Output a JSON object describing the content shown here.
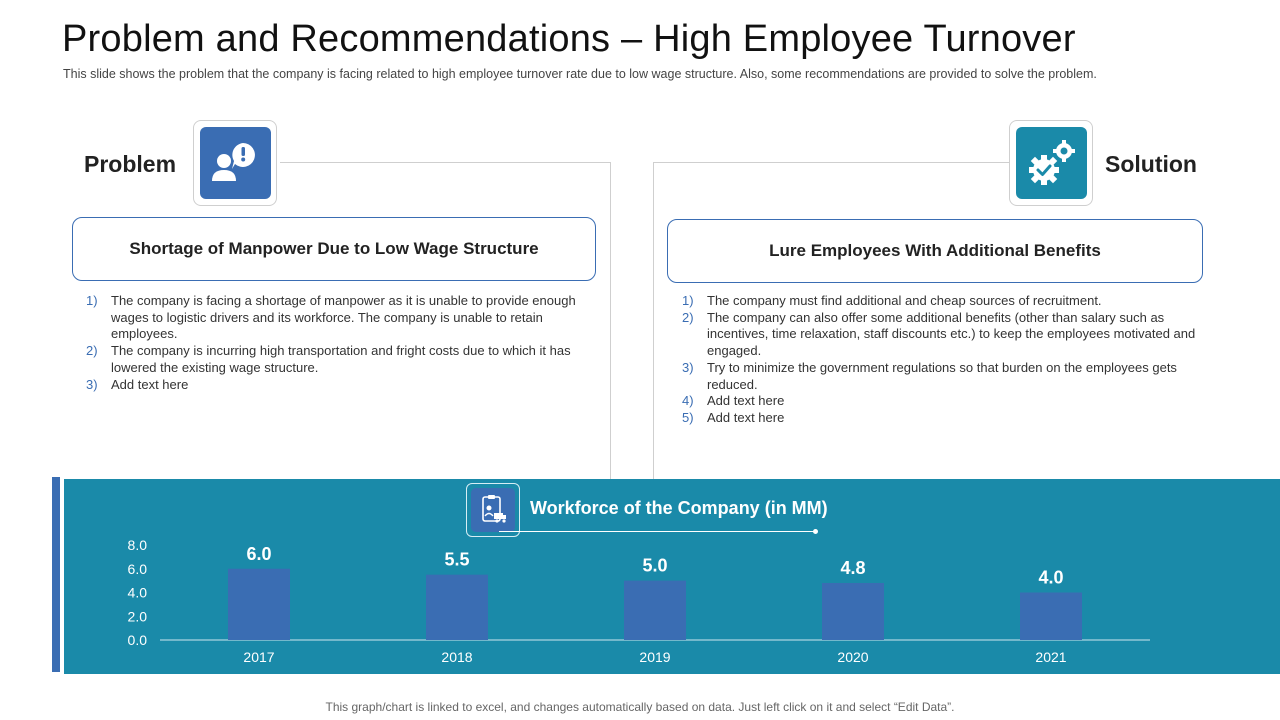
{
  "slide": {
    "title": "Problem and Recommendations – High Employee Turnover",
    "subtitle": "This slide shows the problem that the company is facing related to high employee turnover rate due to low wage structure. Also, some recommendations are provided to solve the problem.",
    "footnote": "This graph/chart is linked to excel, and changes automatically based on data. Just left click on it and select “Edit Data”."
  },
  "problem": {
    "heading": "Problem",
    "icon": "person-alert-icon",
    "headline": "Shortage of Manpower Due to Low Wage Structure",
    "points": [
      {
        "num": "1)",
        "text": "The company is facing a shortage of manpower as it is unable to provide enough wages to logistic drivers and its workforce. The company is unable to retain employees."
      },
      {
        "num": "2)",
        "text": "The company is incurring high transportation and fright costs due to which it has lowered the existing wage structure."
      },
      {
        "num": "3)",
        "text": "Add text here"
      }
    ]
  },
  "solution": {
    "heading": "Solution",
    "icon": "gears-check-icon",
    "headline": "Lure Employees With Additional Benefits",
    "points": [
      {
        "num": "1)",
        "text": "The company must find additional and cheap sources of recruitment."
      },
      {
        "num": "2)",
        "text": "The company can also offer some additional benefits (other than salary such as incentives, time relaxation, staff discounts etc.) to keep the employees motivated and engaged."
      },
      {
        "num": "3)",
        "text": "Try to minimize  the government regulations so that burden on the employees gets reduced."
      },
      {
        "num": "4)",
        "text": "Add text here"
      },
      {
        "num": "5)",
        "text": "Add text here"
      }
    ]
  },
  "colors": {
    "primary_blue": "#3a6db3",
    "teal": "#1a8aa9"
  },
  "chart_data": {
    "type": "bar",
    "title": "Workforce of the Company (in MM)",
    "icon": "workforce-clipboard-icon",
    "categories": [
      "2017",
      "2018",
      "2019",
      "2020",
      "2021"
    ],
    "values": [
      6.0,
      5.5,
      5.0,
      4.8,
      4.0
    ],
    "data_labels": [
      "6.0",
      "5.5",
      "5.0",
      "4.8",
      "4.0"
    ],
    "y_ticks": [
      "0.0",
      "2.0",
      "4.0",
      "6.0",
      "8.0"
    ],
    "ylim": [
      0,
      8
    ],
    "grid": false,
    "legend": "none",
    "bar_color": "#3a6db3"
  }
}
